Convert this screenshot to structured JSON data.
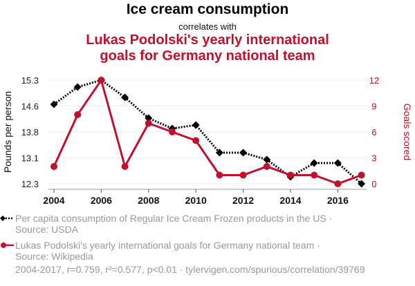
{
  "chart_data": {
    "type": "line",
    "title": "Ice cream consumption",
    "subtitle": "correlates with",
    "title2": "Lukas Podolski's yearly international goals for Germany national team",
    "title2_lines": [
      "Lukas Podolski's yearly international",
      "goals for Germany national team"
    ],
    "x": [
      2004,
      2005,
      2006,
      2007,
      2008,
      2009,
      2010,
      2011,
      2012,
      2013,
      2014,
      2015,
      2016,
      2017
    ],
    "xticks": [
      "2004",
      "2006",
      "2008",
      "2010",
      "2012",
      "2014",
      "2016"
    ],
    "xlim": [
      2003.8,
      2017.3
    ],
    "series": [
      {
        "name": "Per capita consumption of Regular Ice Cream Frozen products in the US",
        "source": "Source: USDA",
        "axis": "left",
        "color": "#000000",
        "style": "dotted",
        "marker": "diamond",
        "values": [
          14.6,
          15.1,
          15.3,
          14.8,
          14.2,
          13.9,
          14.0,
          13.2,
          13.2,
          13.0,
          12.5,
          12.9,
          12.9,
          12.3
        ]
      },
      {
        "name": "Lukas Podolski's yearly international goals for Germany national team",
        "source": "Source: Wikipedia",
        "axis": "right",
        "color": "#c0102e",
        "style": "solid",
        "marker": "circle",
        "values": [
          2,
          8,
          12,
          2,
          7,
          6,
          5,
          1,
          1,
          2,
          1,
          1,
          0,
          1
        ]
      }
    ],
    "ylabel_left": "Pounds per person",
    "ylim_left": [
      12.3,
      15.3
    ],
    "yticks_left": [
      "15.3",
      "14.6",
      "13.8",
      "13.1",
      "12.3"
    ],
    "ylabel_right": "Goals scored",
    "ylim_right": [
      0,
      12
    ],
    "yticks_right": [
      "12",
      "9",
      "6",
      "3",
      "0"
    ],
    "grid": true,
    "legend_placement": "bottom",
    "footer": "2004-2017, r=0.759, r²=0.577, p<0.01 · tylervigen.com/spurious/correlation/39769"
  },
  "legend": {
    "items": [
      {
        "line1": "Per capita consumption of Regular Ice Cream Frozen products in the US ·",
        "line2": "Source: USDA"
      },
      {
        "line1": "Lukas Podolski's yearly international goals for Germany national team ·",
        "line2": "Source: Wikipedia"
      }
    ]
  }
}
